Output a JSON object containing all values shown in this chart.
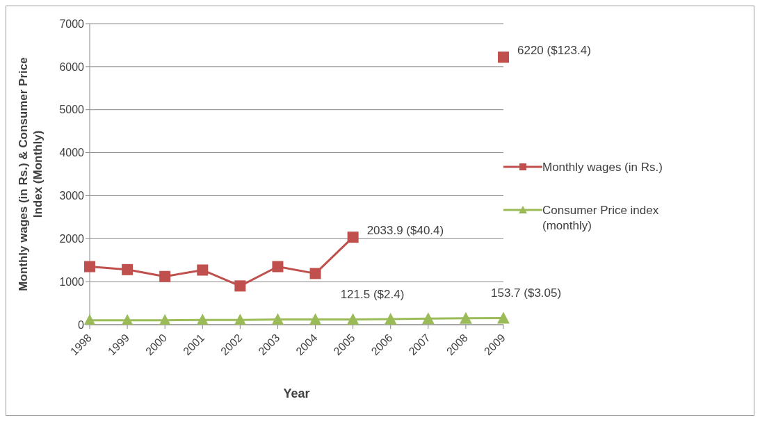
{
  "chart_data": {
    "type": "line",
    "xlabel": "Year",
    "ylabel": "Monthly wages (in Rs.) & Consumer Price Index (Monthly)",
    "categories": [
      "1998",
      "1999",
      "2000",
      "2001",
      "2002",
      "2003",
      "2004",
      "2005",
      "2006",
      "2007",
      "2008",
      "2009"
    ],
    "series": [
      {
        "name": "Monthly wages (in Rs.)",
        "color": "#c0504d",
        "marker": "square",
        "values": [
          1350,
          1280,
          1120,
          1270,
          900,
          1350,
          1190,
          2033.9,
          null,
          null,
          null,
          6220
        ],
        "value_labels": [
          null,
          null,
          null,
          null,
          null,
          null,
          null,
          "2033.9 ($40.4)",
          null,
          null,
          null,
          "6220 ($123.4)"
        ]
      },
      {
        "name": "Consumer Price index (monthly)",
        "color": "#9bbb59",
        "marker": "triangle",
        "values": [
          100,
          100,
          100,
          110,
          110,
          120,
          120,
          121.5,
          130,
          140,
          150,
          153.7
        ],
        "value_labels": [
          null,
          null,
          null,
          null,
          null,
          null,
          null,
          "121.5 ($2.4)",
          null,
          null,
          null,
          "153.7 ($3.05)"
        ]
      }
    ],
    "ylim": [
      0,
      7000
    ],
    "yticks": [
      0,
      1000,
      2000,
      3000,
      4000,
      5000,
      6000,
      7000
    ],
    "grid": "y",
    "legend": "right",
    "line_style": "solid"
  }
}
